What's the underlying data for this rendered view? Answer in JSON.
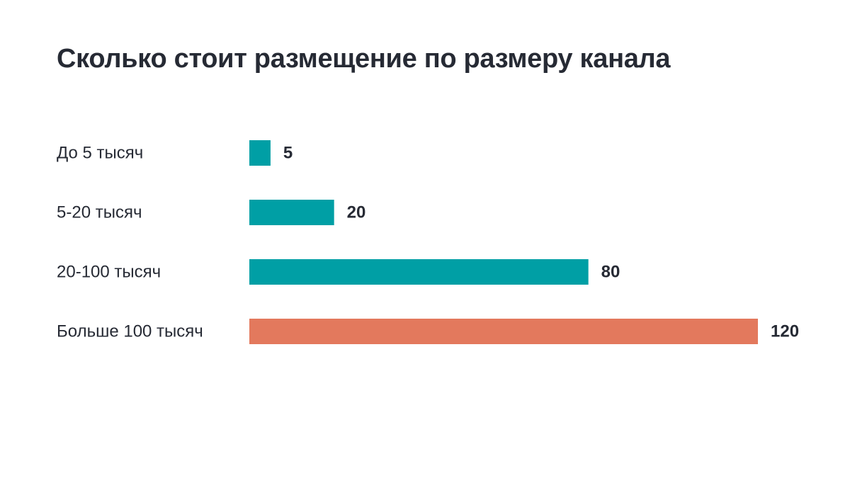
{
  "chart_data": {
    "type": "bar",
    "orientation": "horizontal",
    "title": "Сколько стоит размещение по размеру канала",
    "categories": [
      "До 5 тысяч",
      "5-20 тысяч",
      "20-100 тысяч",
      "Больше 100 тысяч"
    ],
    "values": [
      5,
      20,
      80,
      120
    ],
    "value_labels": [
      "5",
      "20",
      "80",
      "120"
    ],
    "bar_colors": [
      "#009fa5",
      "#009fa5",
      "#009fa5",
      "#e3795d"
    ],
    "xlim": [
      0,
      120
    ],
    "grid": false,
    "legend": "none"
  }
}
